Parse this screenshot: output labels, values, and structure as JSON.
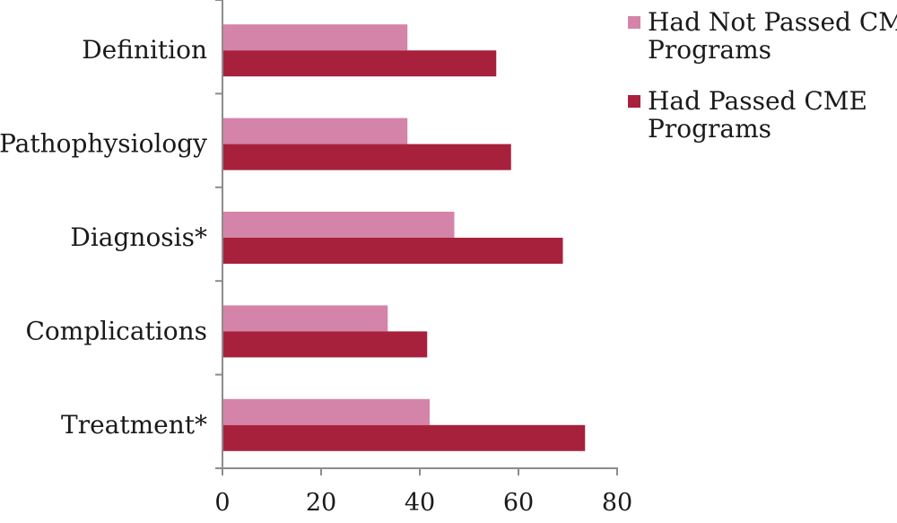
{
  "chart_data": {
    "type": "bar",
    "orientation": "horizontal",
    "categories": [
      "Definition",
      "Pathophysiology",
      "Diagnosis*",
      "Complications",
      "Treatment*"
    ],
    "series": [
      {
        "name": "Had Not Passed CME Programs",
        "values": [
          37.5,
          37.5,
          47,
          33.5,
          42
        ],
        "color": "#d584a9"
      },
      {
        "name": "Had Passed CME Programs",
        "values": [
          55.5,
          58.5,
          69,
          41.5,
          73.5
        ],
        "color": "#a8213c"
      }
    ],
    "xlim": [
      0,
      80
    ],
    "xticks": [
      "0",
      "20",
      "40",
      "60",
      "80"
    ],
    "legend": {
      "position": "top-right",
      "entries": [
        [
          "Had Not Passed CME",
          "Programs"
        ],
        [
          "Had Passed CME",
          "Programs"
        ]
      ]
    },
    "grid": false,
    "axis_color": "#8c8c8c"
  }
}
